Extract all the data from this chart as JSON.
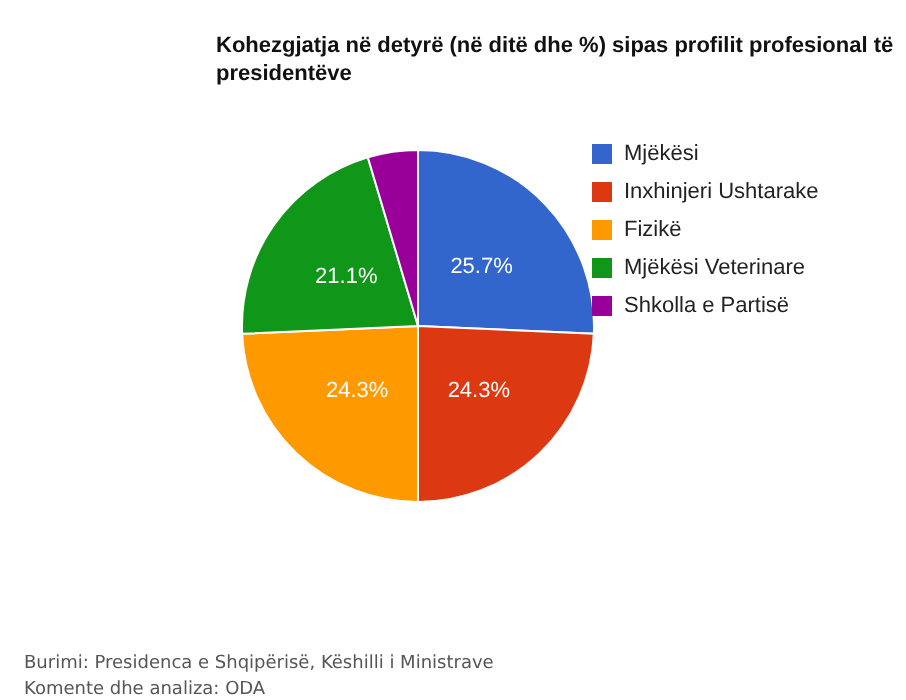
{
  "chart_data": {
    "type": "pie",
    "title": "Kohezgjatja në detyrë (në ditë dhe %) sipas profilit profesional të presidentëve",
    "categories": [
      "Mjëkësi",
      "Inxhinjeri Ushtarake",
      "Fizikë",
      "Mjëkësi Veterinare",
      "Shkolla e Partisë"
    ],
    "values": [
      25.7,
      24.3,
      24.3,
      21.1,
      4.6
    ],
    "value_labels": [
      "25.7%",
      "24.3%",
      "24.3%",
      "21.1%",
      null
    ],
    "colors": [
      "#3366cc",
      "#dc3912",
      "#ff9900",
      "#109618",
      "#990099"
    ],
    "legend": "right",
    "annotations": [
      "Burimi: Presidenca e Shqipërisë, Këshilli i Ministrave",
      "Komente dhe analiza: ODA"
    ]
  }
}
